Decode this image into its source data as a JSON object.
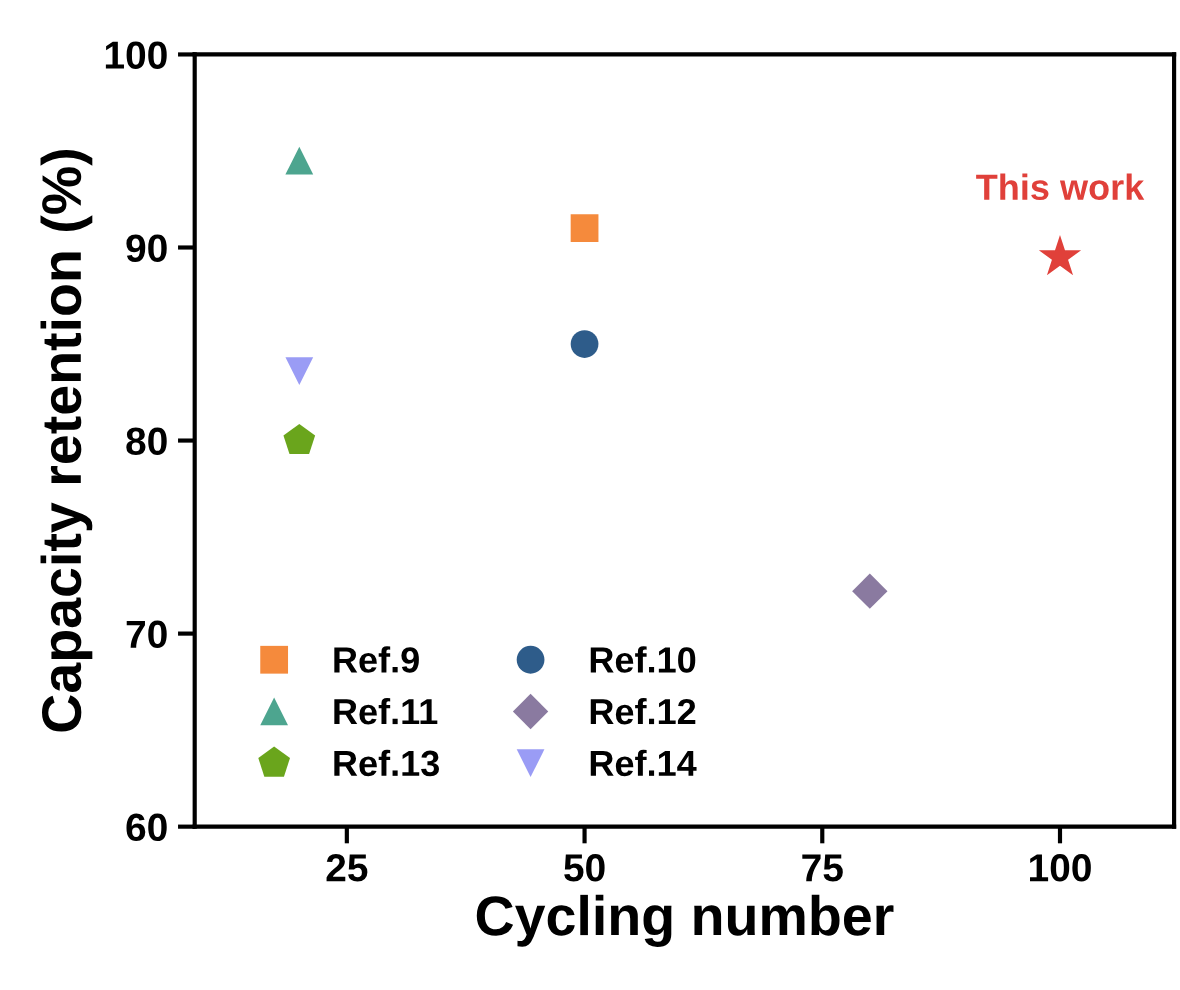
{
  "chart_data": {
    "type": "scatter",
    "xlabel": "Cycling number",
    "ylabel": "Capacity retention (%)",
    "xlim": [
      9,
      112
    ],
    "xticks": [
      25,
      50,
      75,
      100
    ],
    "ylim": [
      60,
      100
    ],
    "yticks": [
      60,
      70,
      80,
      90,
      100
    ],
    "grid": false,
    "legend": "bottom left",
    "series": [
      {
        "name": "Ref.9",
        "color": "#f58a3c",
        "marker": "square",
        "x": [
          50
        ],
        "values": [
          91
        ]
      },
      {
        "name": "Ref.10",
        "color": "#2e5c8a",
        "marker": "circle",
        "x": [
          50
        ],
        "values": [
          85
        ]
      },
      {
        "name": "Ref.11",
        "color": "#4da58f",
        "marker": "triangle",
        "x": [
          20
        ],
        "values": [
          94.5
        ]
      },
      {
        "name": "Ref.12",
        "color": "#8a7aa0",
        "marker": "diamond",
        "x": [
          80
        ],
        "values": [
          72.2
        ]
      },
      {
        "name": "Ref.13",
        "color": "#6aa51c",
        "x": [
          20
        ],
        "values": [
          80
        ]
      },
      {
        "name": "Ref.14",
        "color": "#9a9cf5",
        "x": [
          20
        ],
        "values": [
          83.6
        ]
      },
      {
        "color": "#e0403a",
        "marker": "star",
        "x": [
          100
        ],
        "values": [
          89.5
        ]
      }
    ],
    "annotations": [
      {
        "text": "This work",
        "x": 100,
        "y": 89.5
      }
    ]
  }
}
